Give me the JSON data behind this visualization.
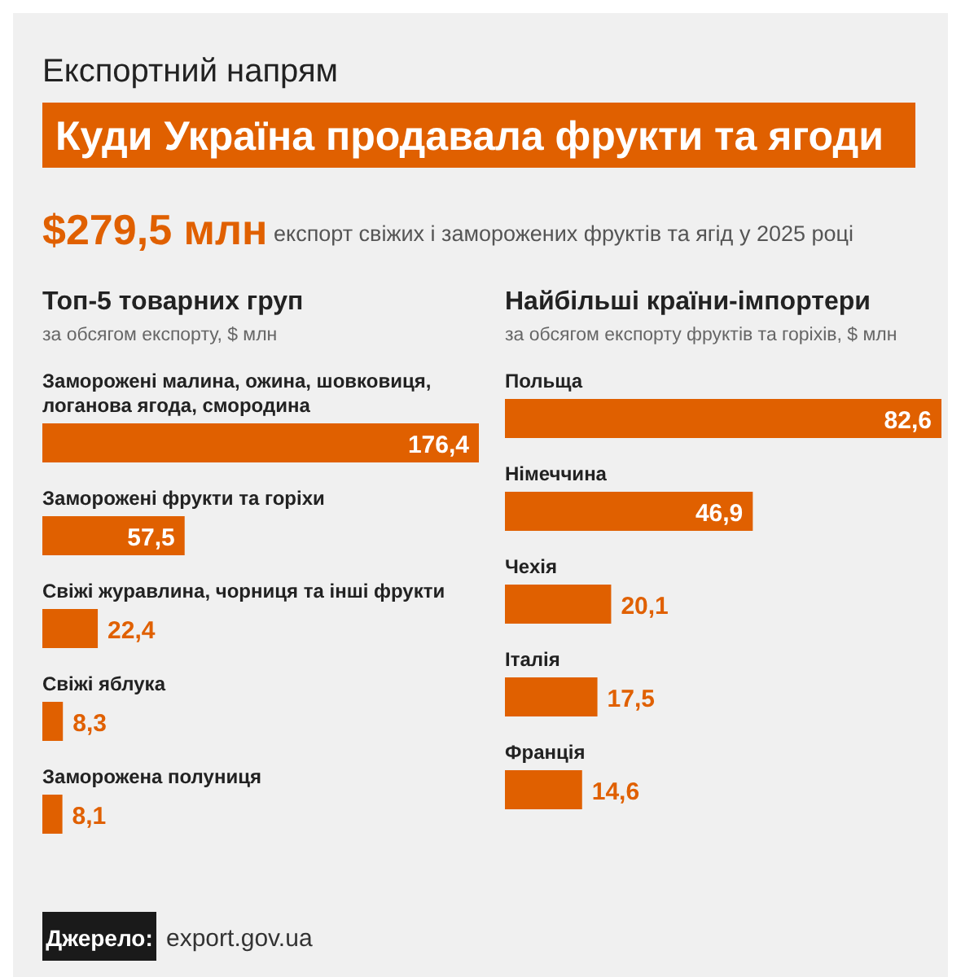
{
  "chart_data": [
    {
      "type": "other",
      "subtitle": "Експортний напрям",
      "title": "Куди Україна продавала фрукти та ягоди",
      "annotations": [
        "$279,5 млн",
        "експорт свіжих і заморожених фруктів та ягід у 2025 році",
        "Джерело:",
        "export.gov.ua"
      ],
      "color": "#e06000"
    },
    {
      "type": "bar",
      "orientation": "horizontal",
      "title": "Топ-5 товарних груп",
      "subtitle": "за обсягом експорту, $ млн",
      "categories": [
        "Заморожені малина, ожина, шовковиця, логанова ягода, смородина",
        "Заморожені фрукти та горіхи",
        "Свіжі журавлина, чорниця та інші фрукти",
        "Свіжі яблука",
        "Заморожена полуниця"
      ],
      "values": [
        176.4,
        57.5,
        22.4,
        8.3,
        8.1
      ],
      "value_labels": [
        "176,4",
        "57,5",
        "22,4",
        "8,3",
        "8,1"
      ],
      "color": "#e06000"
    },
    {
      "type": "bar",
      "orientation": "horizontal",
      "title": "Найбільші країни-імпортери",
      "subtitle": "за обсягом експорту фруктів та горіхів, $ млн",
      "categories": [
        "Польща",
        "Німеччина",
        "Чехія",
        "Італія",
        "Франція"
      ],
      "values": [
        82.6,
        46.9,
        20.1,
        17.5,
        14.6
      ],
      "value_labels": [
        "82,6",
        "46,9",
        "20,1",
        "17,5",
        "14,6"
      ],
      "color": "#e06000"
    }
  ]
}
